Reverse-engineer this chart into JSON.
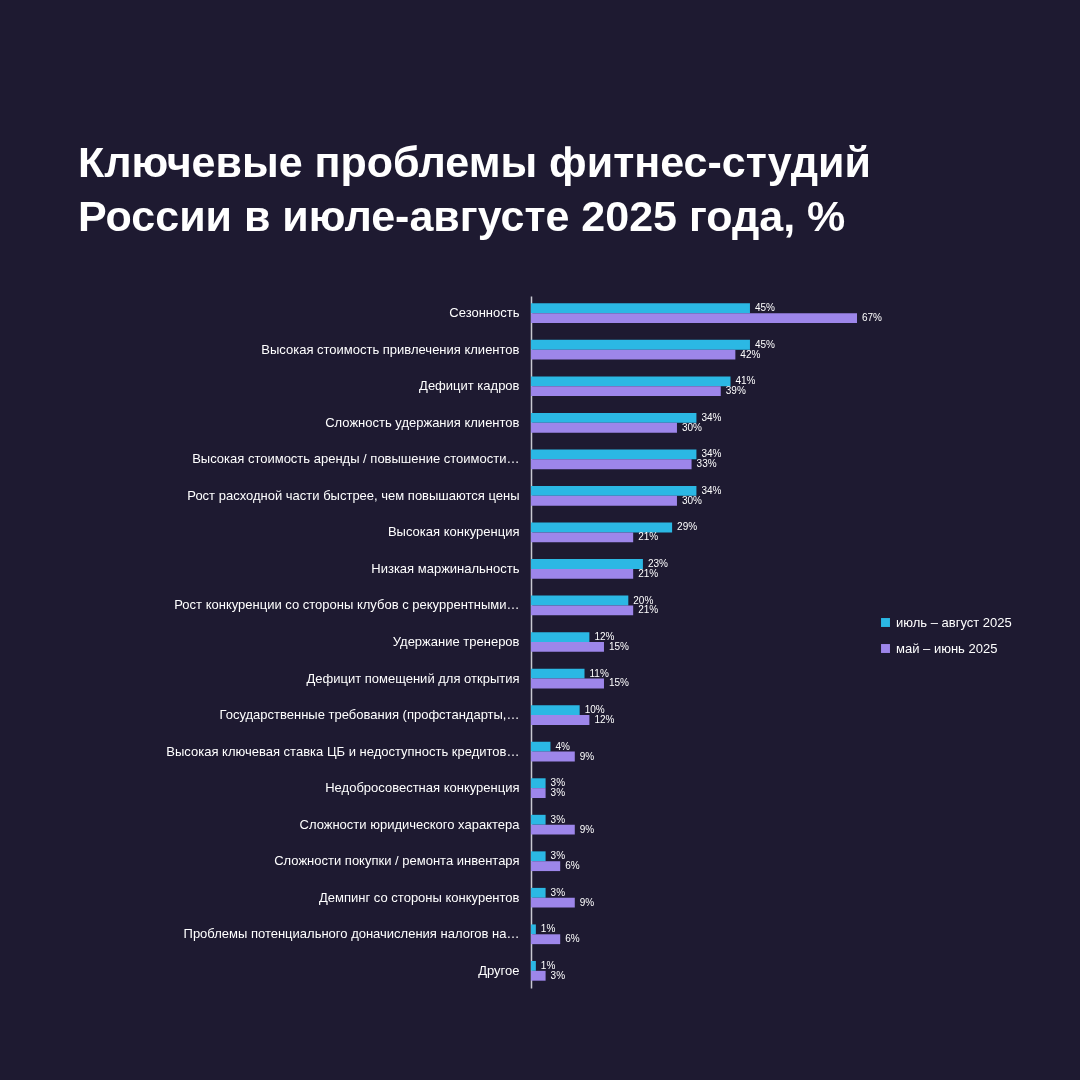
{
  "chart_data": {
    "type": "bar",
    "orientation": "horizontal",
    "title": "Ключевые проблемы фитнес-студий\nРоссии в июле-августе 2025 года, %",
    "categories": [
      "Сезонность",
      "Высокая стоимость привлечения клиентов",
      "Дефицит кадров",
      "Сложность удержания клиентов",
      "Высокая стоимость аренды / повышение стоимости…",
      "Рост расходной части быстрее, чем повышаются цены",
      "Высокая конкуренция",
      "Низкая маржинальность",
      "Рост конкуренции со стороны клубов с рекуррентными…",
      "Удержание тренеров",
      "Дефицит помещений для открытия",
      "Государственные требования (профстандарты,…",
      "Высокая ключевая ставка ЦБ и недоступность кредитов…",
      "Недобросовестная конкуренция",
      "Сложности юридического характера",
      "Сложности покупки / ремонта инвентаря",
      "Демпинг со стороны конкурентов",
      "Проблемы потенциального доначисления налогов на…",
      "Другое"
    ],
    "series": [
      {
        "name": "июль – август 2025",
        "color": "#2bb8e4",
        "values": [
          45,
          45,
          41,
          34,
          34,
          34,
          29,
          23,
          20,
          12,
          11,
          10,
          4,
          3,
          3,
          3,
          3,
          1,
          1
        ],
        "value_labels": [
          "45%",
          "45%",
          "41%",
          "34%",
          "34%",
          "34%",
          "29%",
          "23%",
          "20%",
          "12%",
          "11%",
          "10%",
          "4%",
          "3%",
          "3%",
          "3%",
          "3%",
          "1%",
          "1%"
        ]
      },
      {
        "name": "май – июнь 2025",
        "color": "#9d86ea",
        "values": [
          67,
          42,
          39,
          30,
          33,
          30,
          21,
          21,
          21,
          15,
          15,
          12,
          9,
          3,
          9,
          6,
          9,
          6,
          3
        ],
        "value_labels": [
          "67%",
          "42%",
          "39%",
          "30%",
          "33%",
          "30%",
          "21%",
          "21%",
          "21%",
          "15%",
          "15%",
          "12%",
          "9%",
          "3%",
          "9%",
          "6%",
          "9%",
          "6%",
          "3%"
        ]
      }
    ],
    "legend": "right",
    "tick_labels": "y"
  }
}
